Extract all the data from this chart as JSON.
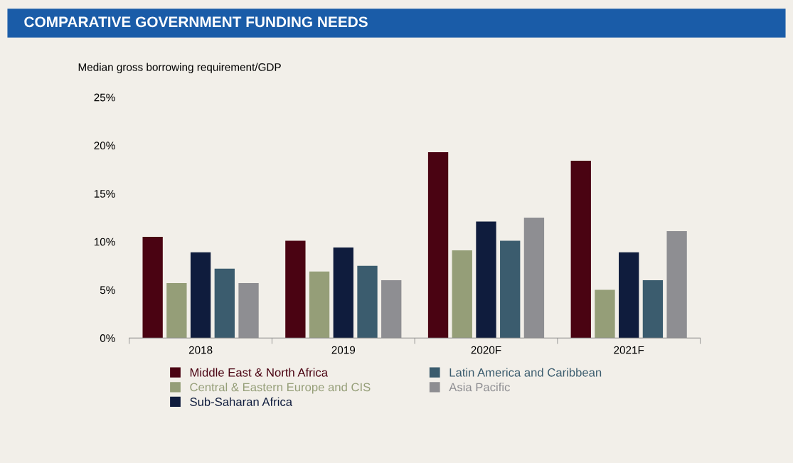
{
  "chart_data": {
    "type": "bar",
    "title": "COMPARATIVE GOVERNMENT FUNDING NEEDS",
    "ylabel": "Median gross borrowing requirement/GDP",
    "categories": [
      "2018",
      "2019",
      "2020F",
      "2021F"
    ],
    "series": [
      {
        "name": "Middle East & North Africa",
        "color": "#4a0312",
        "values": [
          10.5,
          10.1,
          19.3,
          18.4
        ]
      },
      {
        "name": "Central & Eastern Europe and CIS",
        "color": "#959e78",
        "values": [
          5.7,
          6.9,
          9.1,
          5.0
        ]
      },
      {
        "name": "Sub-Saharan Africa",
        "color": "#0f1c3d",
        "values": [
          8.9,
          9.4,
          12.1,
          8.9
        ]
      },
      {
        "name": "Latin America and Caribbean",
        "color": "#3b5c6e",
        "values": [
          7.2,
          7.5,
          10.1,
          6.0
        ]
      },
      {
        "name": "Asia Pacific",
        "color": "#8e8e92",
        "values": [
          5.7,
          6.0,
          12.5,
          11.1
        ]
      }
    ],
    "ylim": [
      0,
      25
    ],
    "yticks": [
      {
        "value": 0,
        "label": "0%"
      },
      {
        "value": 5,
        "label": "5%"
      },
      {
        "value": 10,
        "label": "10%"
      },
      {
        "value": 15,
        "label": "15%"
      },
      {
        "value": 20,
        "label": "20%"
      },
      {
        "value": 25,
        "label": "25%"
      }
    ],
    "grid": false,
    "legend": "bottom"
  }
}
